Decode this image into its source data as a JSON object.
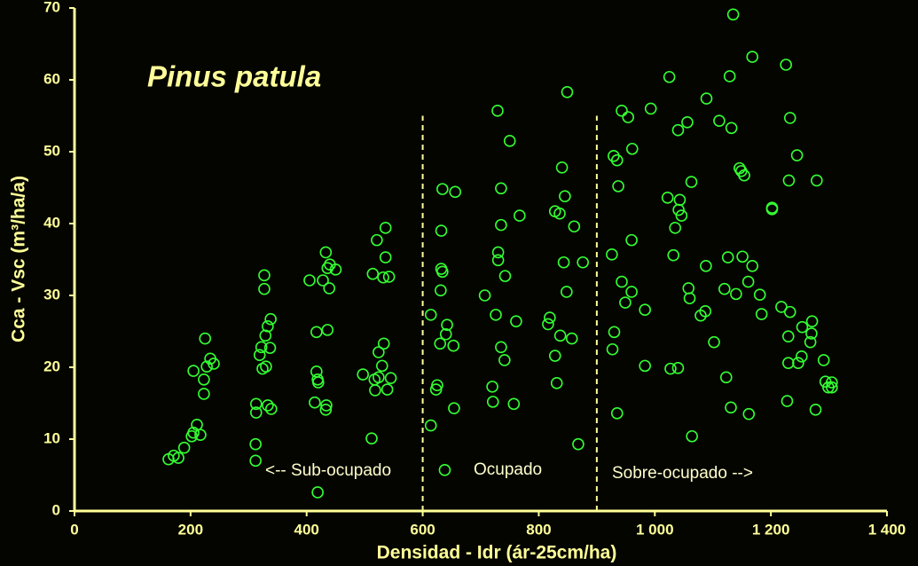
{
  "chart_data": {
    "type": "scatter",
    "title": "Pinus  patula",
    "x_label": "Densidad - Idr  (ár-25cm/ha)",
    "y_label": "Cca - Vsc  (m³/ha/a)",
    "annotations": [
      "<-- Sub-ocupado",
      "Ocupado",
      "Sobre-ocupado -->"
    ],
    "vlines": [
      {
        "x": 600,
        "y": [
          0,
          55
        ]
      },
      {
        "x": 900,
        "y": [
          0,
          55
        ]
      }
    ],
    "color": "#33ff33",
    "axis_color": "#ffff99",
    "line_color": "#ffff99",
    "xlim": [
      0,
      1400
    ],
    "ylim": [
      0,
      70
    ],
    "xticks": [
      0,
      200,
      400,
      600,
      800,
      {
        "value": 1000,
        "label": "1 000"
      },
      {
        "value": 1200,
        "label": "1 200"
      },
      {
        "value": 1400,
        "label": "1 400"
      }
    ],
    "yticks": [
      0,
      10,
      20,
      30,
      40,
      50,
      60,
      70
    ],
    "grid": false,
    "x": [
      162,
      171,
      179,
      189,
      202,
      205,
      211,
      217,
      205,
      225,
      223,
      223,
      228,
      234,
      240,
      312,
      312,
      313,
      313,
      327,
      327,
      338,
      333,
      329,
      322,
      319,
      324,
      330,
      337,
      333,
      339,
      405,
      417,
      417,
      419,
      420,
      414,
      419,
      428,
      433,
      436,
      440,
      450,
      439,
      436,
      434,
      433,
      497,
      512,
      514,
      521,
      536,
      536,
      532,
      542,
      533,
      530,
      524,
      524,
      517,
      518,
      539,
      545,
      614,
      614,
      625,
      623,
      630,
      631,
      632,
      634,
      632,
      634,
      640,
      642,
      653,
      654,
      656,
      638,
      707,
      720,
      721,
      726,
      729,
      730,
      730,
      735,
      735,
      735,
      742,
      741,
      750,
      757,
      761,
      767,
      816,
      819,
      828,
      828,
      831,
      836,
      837,
      840,
      843,
      845,
      849,
      848,
      857,
      861,
      868,
      876,
      926,
      927,
      930,
      929,
      935,
      935,
      937,
      943,
      943,
      949,
      954,
      960,
      961,
      960,
      983,
      983,
      993,
      1022,
      1025,
      1027,
      1032,
      1035,
      1040,
      1040,
      1041,
      1043,
      1046,
      1056,
      1058,
      1060,
      1063,
      1064,
      1079,
      1087,
      1088,
      1089,
      1102,
      1111,
      1120,
      1123,
      1126,
      1129,
      1131,
      1132,
      1135,
      1140,
      1146,
      1149,
      1154,
      1151,
      1161,
      1162,
      1168,
      1168,
      1181,
      1184,
      1202,
      1202,
      1218,
      1226,
      1230,
      1228,
      1230,
      1231,
      1233,
      1233,
      1245,
      1247,
      1253,
      1254,
      1268,
      1270,
      1271,
      1277,
      1279,
      1291,
      1294,
      1299,
      1305,
      1305
    ],
    "y": [
      7.2,
      7.7,
      7.4,
      8.8,
      10.4,
      10.9,
      12.0,
      10.6,
      19.5,
      24.0,
      18.3,
      16.3,
      20.1,
      21.2,
      20.5,
      7.0,
      9.3,
      14.9,
      13.7,
      32.8,
      30.9,
      26.7,
      25.7,
      24.4,
      22.8,
      21.7,
      19.8,
      20.1,
      22.7,
      14.7,
      14.2,
      32.1,
      24.9,
      19.4,
      18.3,
      17.9,
      15.1,
      2.6,
      32.1,
      36.0,
      33.8,
      34.3,
      33.6,
      31.0,
      25.2,
      14.7,
      14.1,
      19.0,
      10.1,
      33.0,
      37.7,
      39.4,
      35.3,
      32.5,
      32.6,
      23.3,
      20.2,
      22.1,
      18.6,
      18.3,
      16.8,
      16.9,
      18.5,
      27.3,
      11.9,
      17.5,
      16.9,
      23.3,
      30.7,
      33.7,
      33.3,
      39.0,
      44.8,
      24.6,
      25.9,
      23.0,
      14.3,
      44.4,
      5.7,
      30.0,
      17.3,
      15.2,
      27.3,
      55.7,
      36.0,
      34.9,
      22.8,
      44.9,
      39.8,
      32.7,
      21.0,
      51.5,
      14.9,
      26.4,
      41.1,
      26.0,
      26.9,
      21.6,
      41.7,
      17.8,
      41.4,
      24.4,
      47.8,
      34.6,
      43.8,
      58.3,
      30.5,
      24.0,
      39.6,
      9.3,
      34.6,
      35.7,
      22.5,
      24.9,
      49.4,
      48.8,
      13.6,
      45.2,
      31.9,
      55.7,
      29.0,
      54.8,
      37.7,
      50.4,
      30.5,
      28.0,
      20.2,
      56.0,
      43.6,
      60.4,
      19.8,
      35.6,
      39.4,
      19.9,
      53.0,
      41.9,
      43.3,
      41.1,
      54.1,
      31.0,
      29.6,
      45.8,
      10.4,
      27.2,
      27.8,
      34.1,
      57.4,
      23.5,
      54.3,
      30.9,
      18.6,
      35.3,
      60.5,
      14.4,
      53.3,
      69.1,
      30.2,
      47.7,
      47.3,
      46.7,
      35.4,
      31.9,
      13.5,
      34.1,
      63.2,
      30.1,
      27.4,
      42.2,
      42.0,
      28.4,
      62.1,
      24.3,
      15.3,
      20.6,
      46.0,
      54.7,
      27.7,
      49.5,
      20.6,
      21.5,
      25.6,
      23.5,
      24.7,
      26.4,
      14.1,
      46.0,
      21.0,
      18.0,
      17.2,
      17.9,
      17.2
    ]
  }
}
